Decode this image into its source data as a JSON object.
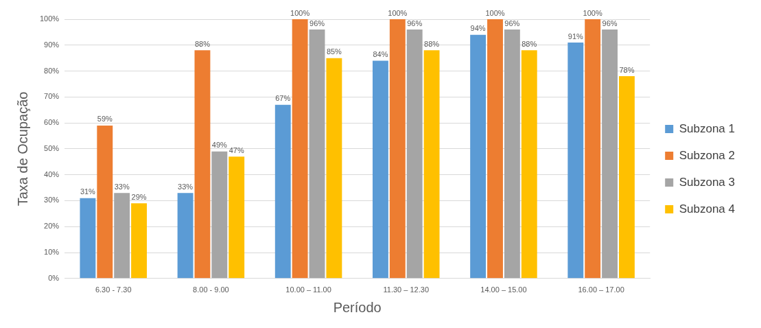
{
  "chart_data": {
    "type": "bar",
    "xlabel": "Período",
    "ylabel": "Taxa de Ocupação",
    "categories": [
      "6.30 - 7.30",
      "8.00 - 9.00",
      "10.00 – 11.00",
      "11.30 – 12.30",
      "14.00 – 15.00",
      "16.00 – 17.00"
    ],
    "series": [
      {
        "name": "Subzona 1",
        "color": "#5b9bd5",
        "values": [
          31,
          33,
          67,
          84,
          94,
          91
        ],
        "value_labels": [
          "31%",
          "33%",
          "67%",
          "84%",
          "94%",
          "91%"
        ]
      },
      {
        "name": "Subzona 2",
        "color": "#ed7d31",
        "values": [
          59,
          88,
          100,
          100,
          100,
          100
        ],
        "value_labels": [
          "59%",
          "88%",
          "100%",
          "100%",
          "100%",
          "100%"
        ]
      },
      {
        "name": "Subzona 3",
        "color": "#a5a5a5",
        "values": [
          33,
          49,
          96,
          96,
          96,
          96
        ],
        "value_labels": [
          "33%",
          "49%",
          "96%",
          "96%",
          "96%",
          "96%"
        ]
      },
      {
        "name": "Subzona 4",
        "color": "#ffc000",
        "values": [
          29,
          47,
          85,
          88,
          88,
          78
        ],
        "value_labels": [
          "29%",
          "47%",
          "85%",
          "88%",
          "88%",
          "78%"
        ]
      }
    ],
    "ylim": [
      0,
      100
    ],
    "yticks": [
      {
        "value": 0,
        "label": "0%"
      },
      {
        "value": 10,
        "label": "10%"
      },
      {
        "value": 20,
        "label": "20%"
      },
      {
        "value": 30,
        "label": "30%"
      },
      {
        "value": 40,
        "label": "40%"
      },
      {
        "value": 50,
        "label": "50%"
      },
      {
        "value": 60,
        "label": "60%"
      },
      {
        "value": 70,
        "label": "70%"
      },
      {
        "value": 80,
        "label": "80%"
      },
      {
        "value": 90,
        "label": "90%"
      },
      {
        "value": 100,
        "label": "100%"
      }
    ],
    "grid": "y",
    "legend": "right"
  }
}
